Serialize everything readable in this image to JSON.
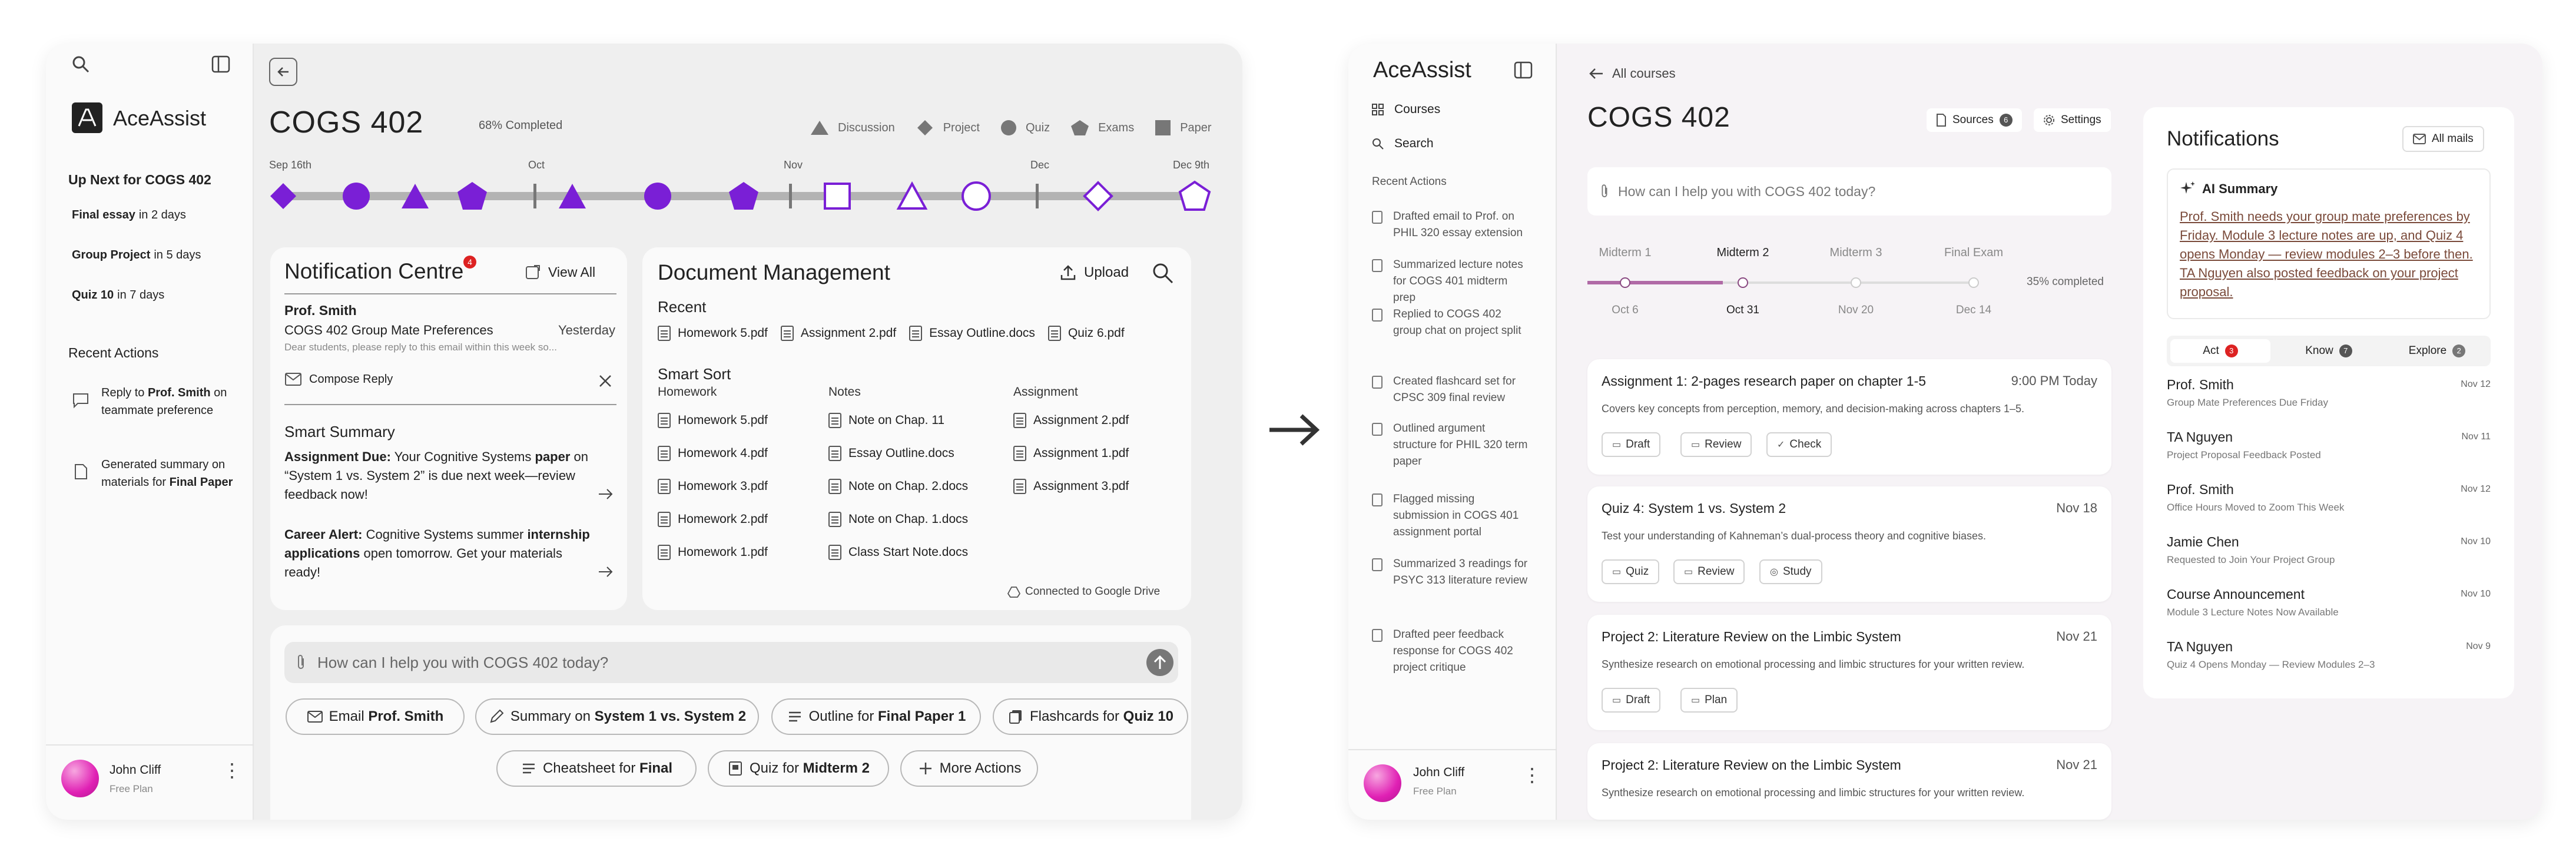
{
  "left": {
    "app_name": "AceAssist",
    "sidebar": {
      "up_next_title": "Up Next for COGS 402",
      "up_next": [
        {
          "name": "Final essay",
          "when": "in 2 days"
        },
        {
          "name": "Group Project",
          "when": "in 5 days"
        },
        {
          "name": "Quiz 10",
          "when": "in 7 days"
        }
      ],
      "recent_title": "Recent Actions",
      "recent": [
        {
          "pre": "Reply to ",
          "bold": "Prof. Smith",
          "post": " on teammate preference"
        },
        {
          "pre": "Generated summary on materials for ",
          "bold": "Final Paper",
          "post": ""
        }
      ],
      "user_name": "John Cliff",
      "user_plan": "Free Plan"
    },
    "course": "COGS 402",
    "completed": "68% Completed",
    "legend": [
      "Discussion",
      "Project",
      "Quiz",
      "Exams",
      "Paper"
    ],
    "timeline_labels": [
      {
        "label": "Sep 16th",
        "align": "left"
      },
      {
        "label": "Oct",
        "align": "center"
      },
      {
        "label": "Nov",
        "align": "center"
      },
      {
        "label": "Dec",
        "align": "center"
      },
      {
        "label": "Dec 9th",
        "align": "right"
      }
    ],
    "notifications": {
      "title": "Notification Centre",
      "badge": "4",
      "view_all": "View All",
      "sender": "Prof. Smith",
      "subject": "COGS 402 Group Mate Preferences",
      "date": "Yesterday",
      "preview": "Dear students, please reply to this email within this week so...",
      "compose": "Compose Reply",
      "smart_title": "Smart Summary",
      "items": [
        {
          "bold1": "Assignment Due:",
          "t1": " Your Cognitive Systems ",
          "bold2": "paper",
          "t2": " on “System 1 vs. System 2” is due next week—review feedback now!"
        },
        {
          "bold1": "Career Alert:",
          "t1": " Cognitive Systems summer ",
          "bold2": "internship applications",
          "t2": " open tomorrow. Get your materials ready!"
        }
      ]
    },
    "documents": {
      "title": "Document Management",
      "upload": "Upload",
      "recent_title": "Recent",
      "recent": [
        "Homework 5.pdf",
        "Assignment 2.pdf",
        "Essay Outline.docs",
        "Quiz 6.pdf"
      ],
      "smart_title": "Smart Sort",
      "columns": [
        {
          "title": "Homework",
          "files": [
            "Homework 5.pdf",
            "Homework 4.pdf",
            "Homework 3.pdf",
            "Homework 2.pdf",
            "Homework 1.pdf"
          ]
        },
        {
          "title": "Notes",
          "files": [
            "Note on Chap. 11",
            "Essay Outline.docs",
            "Note on Chap. 2.docs",
            "Note on Chap. 1.docs",
            "Class Start Note.docs"
          ]
        },
        {
          "title": "Assignment",
          "files": [
            "Assignment 2.pdf",
            "Assignment 1.pdf",
            "Assignment 3.pdf"
          ]
        }
      ],
      "drive": "Connected to Google Drive"
    },
    "prompt_placeholder": "How can I help you with COGS 402 today?",
    "chips_row1": [
      {
        "pre": "Email ",
        "bold": "Prof. Smith",
        "icon": "mail-icon"
      },
      {
        "pre": "Summary on ",
        "bold": "System 1 vs. System 2",
        "icon": "pen-icon"
      },
      {
        "pre": "Outline for ",
        "bold": "Final Paper 1",
        "icon": "list-icon"
      },
      {
        "pre": "Flashcards for ",
        "bold": "Quiz 10",
        "icon": "cards-icon"
      }
    ],
    "chips_row2": [
      {
        "pre": "Cheatsheet for ",
        "bold": "Final",
        "icon": "list-icon"
      },
      {
        "pre": "Quiz for ",
        "bold": "Midterm 2",
        "icon": "quiz-icon"
      },
      {
        "pre": "More Actions",
        "bold": "",
        "icon": "plus-icon"
      }
    ]
  },
  "right": {
    "app_name": "AceAssist",
    "nav": [
      "Courses",
      "Search"
    ],
    "recent_title": "Recent Actions",
    "recent": [
      "Drafted email to Prof. on PHIL 320 essay extension",
      "Summarized lecture notes for COGS 401 midterm prep",
      "Replied to COGS 402 group chat on project split",
      "Created flashcard set for CPSC 309 final review",
      "Outlined argument structure for PHIL 320 term paper",
      "Flagged missing submission in COGS 401 assignment portal",
      "Summarized 3 readings for PSYC 313 literature review",
      "Drafted peer feedback response for COGS 402 project critique"
    ],
    "user_name": "John Cliff",
    "user_plan": "Free Plan",
    "back_label": "All courses",
    "course": "COGS 402",
    "sources": "Sources",
    "sources_count": "6",
    "settings": "Settings",
    "prompt_placeholder": "How can I help you with COGS 402 today?",
    "milestones": [
      {
        "name": "Midterm 1",
        "date": "Oct 6"
      },
      {
        "name": "Midterm 2",
        "date": "Oct 31"
      },
      {
        "name": "Midterm 3",
        "date": "Nov 20"
      },
      {
        "name": "Final Exam",
        "date": "Dec 14"
      }
    ],
    "progress_text": "35% completed",
    "progress": 0.35,
    "tasks": [
      {
        "title": "Assignment 1: 2-pages research paper on chapter 1-5",
        "date": "9:00 PM Today",
        "desc": "Covers key concepts from perception, memory, and decision-making across chapters 1–5.",
        "actions": [
          "Draft",
          "Review",
          "Check"
        ]
      },
      {
        "title": "Quiz 4: System 1 vs. System 2",
        "date": "Nov 18",
        "desc": "Test your understanding of Kahneman’s dual-process theory and cognitive biases.",
        "actions": [
          "Quiz",
          "Review",
          "Study"
        ]
      },
      {
        "title": "Project 2: Literature Review on the Limbic System",
        "date": "Nov 21",
        "desc": "Synthesize research on emotional processing and limbic structures for your written review.",
        "actions": [
          "Draft",
          "Plan"
        ]
      },
      {
        "title": "Project 2: Literature Review on the Limbic System",
        "date": "Nov 21",
        "desc": "Synthesize research on emotional processing and limbic structures for your written review.",
        "actions": []
      }
    ],
    "notifications": {
      "title": "Notifications",
      "all_mails": "All mails",
      "ai_title": "AI Summary",
      "ai_text": "Prof. Smith needs your group mate preferences by Friday. Module 3 lecture notes are up, and Quiz 4 opens Monday — review modules 2–3 before then. TA Nguyen also posted feedback on your project proposal.",
      "tabs": [
        {
          "label": "Act",
          "count": "3"
        },
        {
          "label": "Know",
          "count": "7"
        },
        {
          "label": "Explore",
          "count": "2"
        }
      ],
      "items": [
        {
          "name": "Prof. Smith",
          "sub": "Group Mate Preferences Due Friday",
          "date": "Nov 12"
        },
        {
          "name": "TA Nguyen",
          "sub": "Project Proposal Feedback Posted",
          "date": "Nov 11"
        },
        {
          "name": "Prof. Smith",
          "sub": "Office Hours Moved to Zoom This Week",
          "date": "Nov 12"
        },
        {
          "name": "Jamie Chen",
          "sub": "Requested to Join Your Project Group",
          "date": "Nov 10"
        },
        {
          "name": "Course Announcement",
          "sub": "Module 3 Lecture Notes Now Available",
          "date": "Nov 10"
        },
        {
          "name": "TA Nguyen",
          "sub": "Quiz 4 Opens Monday — Review Modules 2–3",
          "date": "Nov 9"
        }
      ]
    }
  },
  "colors": {
    "accent": "#7a1fd6",
    "magenta": "#e020b4",
    "track": "#b3b3b3",
    "progress": "#b06aa6"
  }
}
